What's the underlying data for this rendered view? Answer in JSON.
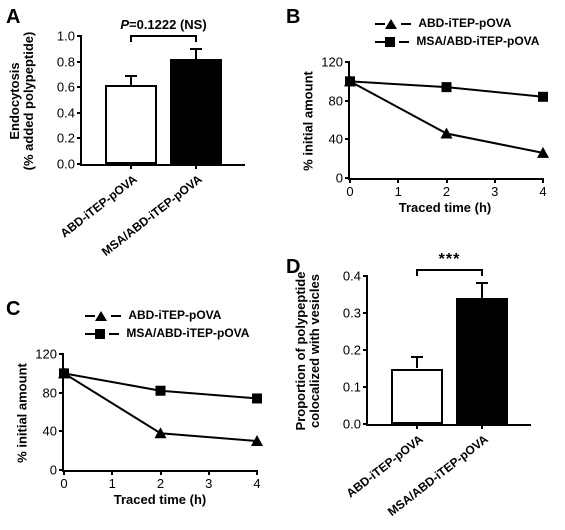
{
  "colors": {
    "axis": "#000000",
    "bar_open": "#ffffff",
    "bar_filled": "#000000",
    "line": "#000000",
    "text": "#000000",
    "bg": "#ffffff"
  },
  "panels": {
    "A": {
      "label": "A",
      "type": "bar",
      "ytitle_line1": "Endocytosis",
      "ytitle_line2": "(% added polypeptide)",
      "ylim": [
        0,
        1.0
      ],
      "yticks": [
        0.0,
        0.2,
        0.4,
        0.6,
        0.8,
        1.0
      ],
      "categories": [
        "ABD-iTEP-pOVA",
        "MSA/ABD-iTEP-pOVA"
      ],
      "values": [
        0.62,
        0.82
      ],
      "errors": [
        0.07,
        0.08
      ],
      "bar_colors": [
        "#ffffff",
        "#000000"
      ],
      "sig_text": "P=0.1222 (NS)",
      "sig_text_italicP": true
    },
    "B": {
      "label": "B",
      "type": "line",
      "ytitle": "% initial amount",
      "xtitle": "Traced time (h)",
      "xlim": [
        0,
        4
      ],
      "ylim": [
        0,
        120
      ],
      "xticks": [
        0,
        1,
        2,
        3,
        4
      ],
      "yticks": [
        0,
        40,
        80,
        120
      ],
      "legend": [
        {
          "marker": "tri",
          "label": "ABD-iTEP-pOVA"
        },
        {
          "marker": "sq",
          "label": "MSA/ABD-iTEP-pOVA"
        }
      ],
      "series": [
        {
          "marker": "tri",
          "x": [
            0,
            2,
            4
          ],
          "y": [
            100,
            46,
            26
          ]
        },
        {
          "marker": "sq",
          "x": [
            0,
            2,
            4
          ],
          "y": [
            100,
            94,
            84
          ]
        }
      ]
    },
    "C": {
      "label": "C",
      "type": "line",
      "ytitle": "% initial amount",
      "xtitle": "Traced time (h)",
      "xlim": [
        0,
        4
      ],
      "ylim": [
        0,
        120
      ],
      "xticks": [
        0,
        1,
        2,
        3,
        4
      ],
      "yticks": [
        0,
        40,
        80,
        120
      ],
      "legend": [
        {
          "marker": "tri",
          "label": "ABD-iTEP-pOVA"
        },
        {
          "marker": "sq",
          "label": "MSA/ABD-iTEP-pOVA"
        }
      ],
      "series": [
        {
          "marker": "tri",
          "x": [
            0,
            2,
            4
          ],
          "y": [
            100,
            38,
            30
          ]
        },
        {
          "marker": "sq",
          "x": [
            0,
            2,
            4
          ],
          "y": [
            100,
            82,
            74
          ]
        }
      ]
    },
    "D": {
      "label": "D",
      "type": "bar",
      "ytitle_line1": "Proportion of polypeptide",
      "ytitle_line2": "colocalized with vesicles",
      "ylim": [
        0,
        0.4
      ],
      "yticks": [
        0.0,
        0.1,
        0.2,
        0.3,
        0.4
      ],
      "categories": [
        "ABD-iTEP-pOVA",
        "MSA/ABD-iTEP-pOVA"
      ],
      "values": [
        0.15,
        0.34
      ],
      "errors": [
        0.03,
        0.04
      ],
      "bar_colors": [
        "#ffffff",
        "#000000"
      ],
      "stars": "***"
    }
  }
}
